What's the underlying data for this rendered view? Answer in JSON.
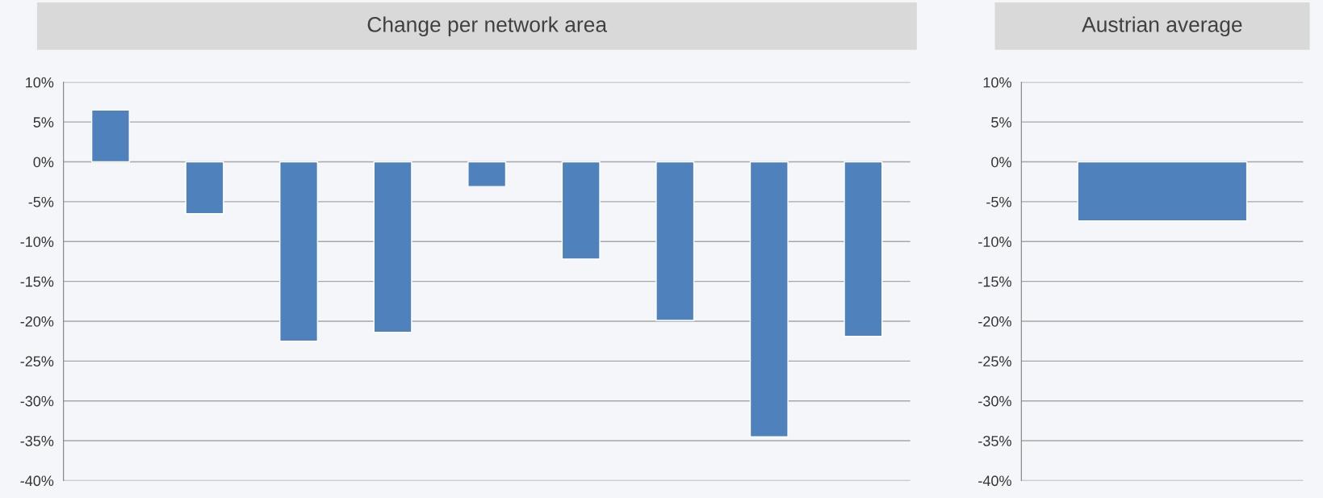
{
  "chart_data": [
    {
      "type": "bar",
      "title": "Change per network area",
      "categories": [
        null,
        null,
        null,
        null,
        null,
        null,
        null,
        null,
        null
      ],
      "series": [
        {
          "color": "#4f81bd",
          "values": [
            6.5,
            -6.5,
            -22.5,
            -21.4,
            -3.1,
            -12.2,
            -19.9,
            -34.5,
            -21.9
          ]
        }
      ],
      "ylim": [
        -40,
        10
      ],
      "yticks": [
        {
          "value": 10,
          "label": "10%"
        },
        {
          "value": 5,
          "label": "5%"
        },
        {
          "value": 0,
          "label": "0%"
        },
        {
          "value": -5,
          "label": "-5%"
        },
        {
          "value": -10,
          "label": "-10%"
        },
        {
          "value": -15,
          "label": "-15%"
        },
        {
          "value": -20,
          "label": "-20%"
        },
        {
          "value": -25,
          "label": "-25%"
        },
        {
          "value": -30,
          "label": "-30%"
        },
        {
          "value": -35,
          "label": "-35%"
        },
        {
          "value": -40,
          "label": "-40%"
        }
      ],
      "grid": "y",
      "legend": false
    },
    {
      "type": "bar",
      "title": "Austrian average",
      "categories": [
        null
      ],
      "series": [
        {
          "color": "#4f81bd",
          "values": [
            -7.4
          ]
        }
      ],
      "ylim": [
        -40,
        10
      ],
      "yticks": [
        {
          "value": 10,
          "label": "10%"
        },
        {
          "value": 5,
          "label": "5%"
        },
        {
          "value": 0,
          "label": "0%"
        },
        {
          "value": -5,
          "label": "-5%"
        },
        {
          "value": -10,
          "label": "-10%"
        },
        {
          "value": -15,
          "label": "-15%"
        },
        {
          "value": -20,
          "label": "-20%"
        },
        {
          "value": -25,
          "label": "-25%"
        },
        {
          "value": -30,
          "label": "-30%"
        },
        {
          "value": -35,
          "label": "-35%"
        },
        {
          "value": -40,
          "label": "-40%"
        }
      ],
      "grid": "y",
      "legend": false
    }
  ]
}
